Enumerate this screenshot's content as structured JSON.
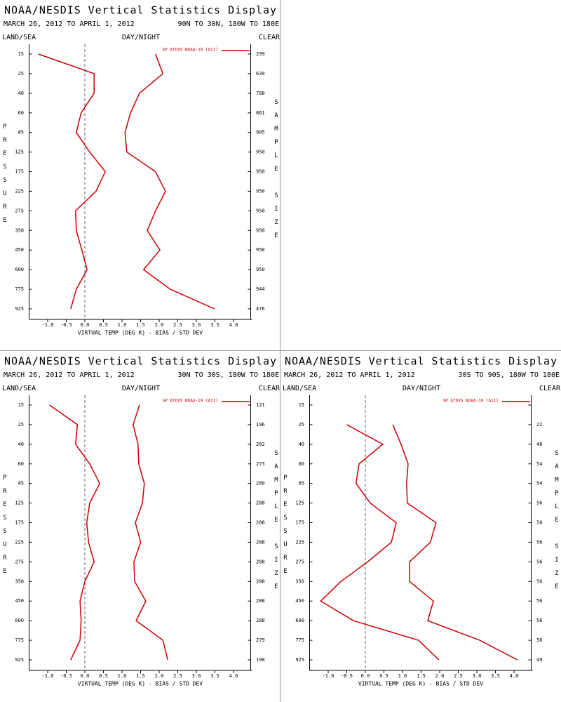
{
  "chart_data": [
    {
      "type": "line",
      "title": "NOAA/NESDIS Vertical Statistics Display",
      "subtitle": "MARCH 26, 2012 TO APRIL 1, 2012",
      "region": "90N TO 30N, 180W TO 180E",
      "left_header": "LAND/SEA",
      "center_header": "DAY/NIGHT",
      "right_header": "CLEAR",
      "ylabel": "PRESSURE",
      "y2label": "SAMPLE SIZE",
      "xlabel": "VIRTUAL TEMP (DEG K) - BIAS / STD DEV",
      "categories": [
        "15",
        "25",
        "40",
        "60",
        "85",
        "125",
        "175",
        "225",
        "275",
        "350",
        "450",
        "600",
        "775",
        "925"
      ],
      "sample_sizes": [
        "299",
        "639",
        "788",
        "861",
        "905",
        "950",
        "950",
        "950",
        "950",
        "950",
        "950",
        "950",
        "944",
        "476"
      ],
      "series": [
        {
          "name": "SP ATOVS NOAA-19 (A11)",
          "color": "#cc0000",
          "values": [
            -1.25,
            0.25,
            0.25,
            -0.1,
            -0.23,
            0.13,
            0.55,
            0.3,
            -0.25,
            -0.23,
            -0.08,
            0.06,
            -0.23,
            -0.38
          ]
        },
        {
          "color": "#cc0000",
          "values": [
            1.9,
            2.1,
            1.47,
            1.23,
            1.08,
            1.13,
            1.9,
            2.17,
            1.9,
            1.68,
            2.02,
            1.58,
            2.3,
            3.49
          ]
        }
      ],
      "xlim": [
        -1.5,
        4.5
      ],
      "xticks": [
        {
          "value": -1,
          "label": "-1.0"
        },
        {
          "value": -0.5,
          "label": "-0.5"
        },
        {
          "value": 0,
          "label": "0.0"
        },
        {
          "value": 0.5,
          "label": "0.5"
        },
        {
          "value": 1,
          "label": "1.0"
        },
        {
          "value": 1.5,
          "label": "1.5"
        },
        {
          "value": 2,
          "label": "2.0"
        },
        {
          "value": 2.5,
          "label": "2.5"
        },
        {
          "value": 3,
          "label": "3.0"
        },
        {
          "value": 3.5,
          "label": "3.5"
        },
        {
          "value": 4,
          "label": "4.0"
        }
      ]
    },
    {
      "type": "line",
      "title": "NOAA/NESDIS Vertical Statistics Display",
      "subtitle": "MARCH 26, 2012 TO APRIL 1, 2012",
      "region": "30N TO 30S, 180W TO 180E",
      "left_header": "LAND/SEA",
      "center_header": "DAY/NIGHT",
      "right_header": "CLEAR",
      "ylabel": "PRESSURE",
      "y2label": "SAMPLE SIZE",
      "xlabel": "VIRTUAL TEMP (DEG K) - BIAS / STD DEV",
      "categories": [
        "15",
        "25",
        "40",
        "60",
        "85",
        "125",
        "175",
        "225",
        "275",
        "350",
        "450",
        "600",
        "775",
        "925"
      ],
      "sample_sizes": [
        "121",
        "196",
        "262",
        "273",
        "280",
        "288",
        "288",
        "288",
        "288",
        "288",
        "288",
        "288",
        "279",
        "190"
      ],
      "series": [
        {
          "name": "SP ATOVS NOAA-19 (A11)",
          "color": "#cc0000",
          "values": [
            -0.95,
            -0.2,
            -0.25,
            0.13,
            0.4,
            0.13,
            0.05,
            0.1,
            0.25,
            0,
            -0.13,
            -0.1,
            -0.13,
            -0.38
          ]
        },
        {
          "color": "#cc0000",
          "values": [
            1.47,
            1.3,
            1.43,
            1.45,
            1.6,
            1.55,
            1.36,
            1.5,
            1.32,
            1.34,
            1.64,
            1.38,
            2.1,
            2.23
          ]
        }
      ],
      "xlim": [
        -1.5,
        4.5
      ],
      "xticks": [
        {
          "value": -1,
          "label": "-1.0"
        },
        {
          "value": -0.5,
          "label": "-0.5"
        },
        {
          "value": 0,
          "label": "0.0"
        },
        {
          "value": 0.5,
          "label": "0.5"
        },
        {
          "value": 1,
          "label": "1.0"
        },
        {
          "value": 1.5,
          "label": "1.5"
        },
        {
          "value": 2,
          "label": "2.0"
        },
        {
          "value": 2.5,
          "label": "2.5"
        },
        {
          "value": 3,
          "label": "3.0"
        },
        {
          "value": 3.5,
          "label": "3.5"
        },
        {
          "value": 4,
          "label": "4.0"
        }
      ]
    },
    {
      "type": "line",
      "title": "NOAA/NESDIS Vertical Statistics Display",
      "subtitle": "MARCH 26, 2012 TO APRIL 1, 2012",
      "region": "30S TO 90S, 180W TO 180E",
      "left_header": "LAND/SEA",
      "center_header": "DAY/NIGHT",
      "right_header": "CLEAR",
      "ylabel": "PRESSURE",
      "y2label": "SAMPLE SIZE",
      "xlabel": "VIRTUAL TEMP (DEG K) - BIAS / STD DEV",
      "categories": [
        "15",
        "25",
        "40",
        "60",
        "85",
        "125",
        "175",
        "225",
        "275",
        "350",
        "450",
        "600",
        "775",
        "925"
      ],
      "sample_sizes": [
        null,
        "22",
        "48",
        "54",
        "54",
        "56",
        "56",
        "56",
        "56",
        "56",
        "56",
        "56",
        "56",
        "49"
      ],
      "series": [
        {
          "name": "SP ATOVS NOAA-19 (A11)",
          "color": "#cc0000",
          "values": [
            null,
            -0.5,
            0.47,
            -0.17,
            -0.25,
            0.13,
            0.83,
            0.7,
            0.06,
            -0.66,
            -1.2,
            -0.32,
            1.43,
            1.98
          ]
        },
        {
          "color": "#cc0000",
          "values": [
            null,
            0.74,
            0.96,
            1.15,
            1.11,
            1.13,
            1.9,
            1.75,
            1.19,
            1.19,
            1.83,
            1.68,
            3.08,
            4.09
          ]
        }
      ],
      "xlim": [
        -1.5,
        4.5
      ],
      "xticks": [
        {
          "value": -1,
          "label": "-1.0"
        },
        {
          "value": -0.5,
          "label": "-0.5"
        },
        {
          "value": 0,
          "label": "0.0"
        },
        {
          "value": 0.5,
          "label": "0.5"
        },
        {
          "value": 1,
          "label": "1.0"
        },
        {
          "value": 1.5,
          "label": "1.5"
        },
        {
          "value": 2,
          "label": "2.0"
        },
        {
          "value": 2.5,
          "label": "2.5"
        },
        {
          "value": 3,
          "label": "3.0"
        },
        {
          "value": 3.5,
          "label": "3.5"
        },
        {
          "value": 4,
          "label": "4.0"
        }
      ]
    }
  ]
}
